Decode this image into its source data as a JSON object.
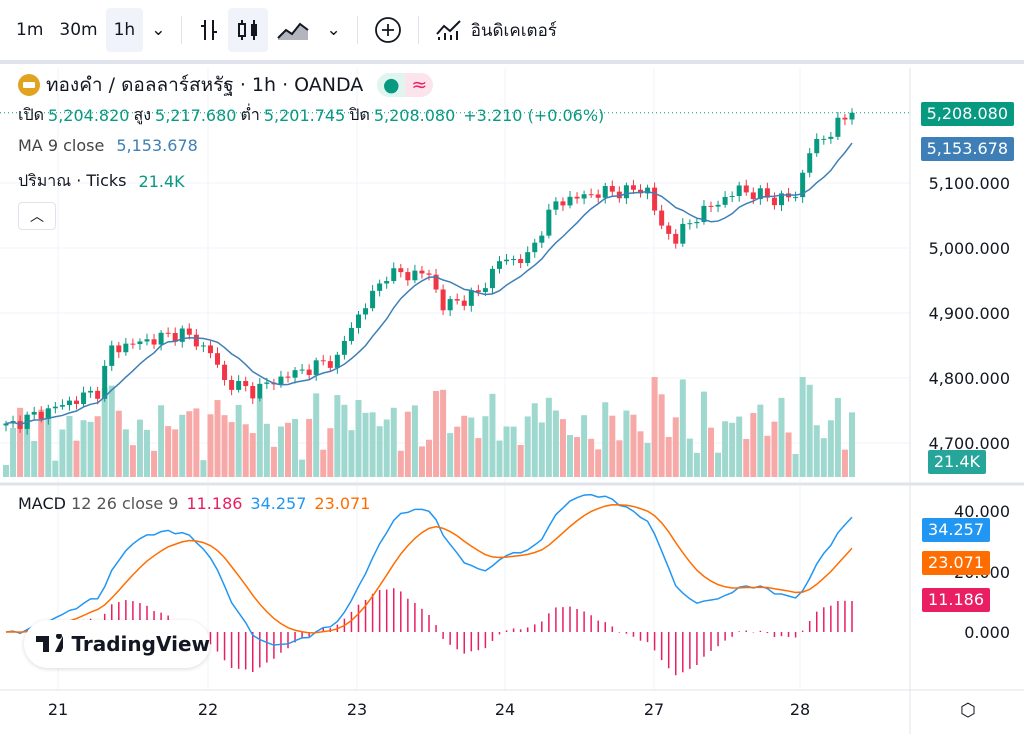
{
  "toolbar": {
    "intervals": [
      "1m",
      "30m",
      "1h"
    ],
    "active_interval": "1h",
    "indicators_label": "อินดิเคเตอร์",
    "icons": [
      "chevron-down-icon",
      "bar-chart-icon",
      "candles-icon",
      "area-chart-icon",
      "chevron-down-icon",
      "plus-circle-icon",
      "indicators-icon"
    ]
  },
  "legend": {
    "symbol": "ทองคำ / ดอลลาร์สหรัฐ · 1h · OANDA",
    "open_label": "เปิด",
    "open": "5,204.820",
    "high_label": "สูง",
    "high": "5,217.680",
    "low_label": "ต่ำ",
    "low": "5,201.745",
    "close_label": "ปิด",
    "close": "5,208.080",
    "change": "+3.210 (+0.06%)",
    "ma_label": "MA 9 close",
    "ma_value": "5,153.678",
    "vol_label": "ปริมาณ · Ticks",
    "vol_value": "21.4K"
  },
  "price_axis": [
    "5,100.000",
    "5,000.000",
    "4,900.000",
    "4,800.000",
    "4,700.000"
  ],
  "badges": {
    "price": "5,208.080",
    "ma": "5,153.678",
    "volume": "21.4K",
    "macd": "34.257",
    "signal": "23.071",
    "hist": "11.186"
  },
  "macd": {
    "label": "MACD",
    "params": "12 26 close 9",
    "hist": "11.186",
    "macd": "34.257",
    "signal": "23.071",
    "axis": [
      "40.000",
      "20.000",
      "0.000"
    ]
  },
  "time_axis": [
    "21",
    "22",
    "23",
    "24",
    "27",
    "28"
  ],
  "brand": "TradingView",
  "colors": {
    "up": "#089981",
    "down": "#f23645",
    "ma": "#2962ff",
    "macd": "#2196f3",
    "signal": "#ff6d00",
    "hist": "#e91e63"
  },
  "chart_data": {
    "type": "candlestick",
    "price_path": [
      [
        0,
        4725
      ],
      [
        13,
        4780
      ],
      [
        15,
        4845
      ],
      [
        25,
        4870
      ],
      [
        29,
        4840
      ],
      [
        31,
        4795
      ],
      [
        35,
        4780
      ],
      [
        39,
        4800
      ],
      [
        47,
        4830
      ],
      [
        49,
        4880
      ],
      [
        54,
        4960
      ],
      [
        60,
        4960
      ],
      [
        62,
        4910
      ],
      [
        67,
        4930
      ],
      [
        70,
        4980
      ],
      [
        74,
        4985
      ],
      [
        76,
        5030
      ],
      [
        78,
        5070
      ],
      [
        84,
        5085
      ],
      [
        91,
        5090
      ],
      [
        93,
        5030
      ],
      [
        95,
        5015
      ],
      [
        98,
        5050
      ],
      [
        104,
        5090
      ],
      [
        109,
        5075
      ],
      [
        112,
        5080
      ],
      [
        114,
        5150
      ],
      [
        117,
        5180
      ],
      [
        120,
        5208
      ]
    ],
    "ylim_price": [
      4680,
      5230
    ],
    "macd_ylim": [
      -12,
      45
    ]
  }
}
